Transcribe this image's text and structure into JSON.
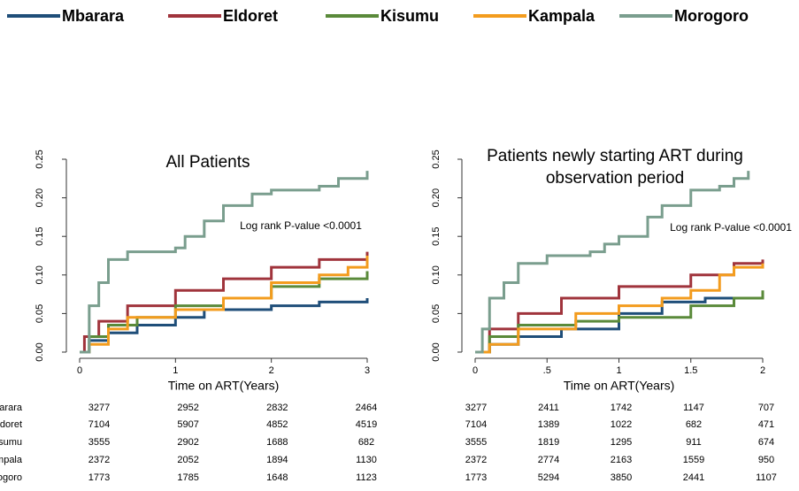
{
  "chart_data": [
    {
      "type": "step",
      "title": "All Patients",
      "annotation": "Log rank P-value <0.0001",
      "x_label": "Time on ART(Years)",
      "xlim": [
        0,
        3
      ],
      "xticks": [
        0,
        1,
        2,
        3
      ],
      "ylim": [
        0,
        0.25
      ],
      "yticks": [
        {
          "value": 0,
          "label": "0.00"
        },
        {
          "value": 0.05,
          "label": "0.05"
        },
        {
          "value": 0.1,
          "label": "0.10"
        },
        {
          "value": 0.15,
          "label": "0.15"
        },
        {
          "value": 0.2,
          "label": "0.20"
        },
        {
          "value": 0.25,
          "label": "0.25"
        }
      ],
      "series": [
        {
          "name": "Mbarara",
          "color": "#1f4e79",
          "x": [
            0,
            0.1,
            0.3,
            0.6,
            1,
            1.3,
            2,
            2.5,
            3
          ],
          "values": [
            0,
            0.015,
            0.025,
            0.035,
            0.045,
            0.055,
            0.06,
            0.065,
            0.07
          ],
          "at_risk": [
            3277,
            2952,
            2832,
            2464
          ]
        },
        {
          "name": "Eldoret",
          "color": "#a0343c",
          "x": [
            0,
            0.05,
            0.2,
            0.5,
            1,
            1.5,
            2,
            2.5,
            3
          ],
          "values": [
            0,
            0.02,
            0.04,
            0.06,
            0.08,
            0.095,
            0.11,
            0.12,
            0.13
          ],
          "at_risk": [
            7104,
            5907,
            4852,
            4519
          ]
        },
        {
          "name": "Kisumu",
          "color": "#5a8a3a",
          "x": [
            0,
            0.1,
            0.3,
            0.6,
            1,
            1.5,
            2,
            2.5,
            3
          ],
          "values": [
            0,
            0.02,
            0.035,
            0.045,
            0.06,
            0.07,
            0.085,
            0.095,
            0.105
          ],
          "at_risk": [
            3555,
            2902,
            1688,
            682
          ]
        },
        {
          "name": "Kampala",
          "color": "#f39c1e",
          "x": [
            0,
            0.1,
            0.3,
            0.5,
            1,
            1.5,
            2,
            2.5,
            2.8,
            3
          ],
          "values": [
            0,
            0.01,
            0.03,
            0.045,
            0.055,
            0.07,
            0.09,
            0.1,
            0.11,
            0.125
          ],
          "at_risk": [
            2372,
            2052,
            1894,
            1130
          ]
        },
        {
          "name": "Morogoro",
          "color": "#7a9e8e",
          "x": [
            0,
            0.1,
            0.2,
            0.3,
            0.5,
            1,
            1.1,
            1.3,
            1.5,
            1.8,
            2,
            2.5,
            2.7,
            3
          ],
          "values": [
            0,
            0.06,
            0.09,
            0.12,
            0.13,
            0.135,
            0.15,
            0.17,
            0.19,
            0.205,
            0.21,
            0.215,
            0.225,
            0.235
          ],
          "at_risk": [
            1773,
            1785,
            1648,
            1123
          ]
        }
      ]
    },
    {
      "type": "step",
      "title": [
        "Patients newly starting ART during",
        "observation period"
      ],
      "annotation": "Log rank P-value <0.0001",
      "x_label": "Time on ART(Years)",
      "xlim": [
        0,
        2
      ],
      "xticks": [
        0,
        {
          "value": 0.5,
          "label": ".5"
        },
        1,
        1.5,
        2
      ],
      "ylim": [
        0,
        0.25
      ],
      "yticks": [
        {
          "value": 0,
          "label": "0.00"
        },
        {
          "value": 0.05,
          "label": "0.05"
        },
        {
          "value": 0.1,
          "label": "0.10"
        },
        {
          "value": 0.15,
          "label": "0.15"
        },
        {
          "value": 0.2,
          "label": "0.20"
        },
        {
          "value": 0.25,
          "label": "0.25"
        }
      ],
      "series": [
        {
          "color": "#1f4e79",
          "x": [
            0,
            0.1,
            0.3,
            0.6,
            1,
            1.3,
            1.6,
            2
          ],
          "values": [
            0,
            0.01,
            0.02,
            0.03,
            0.05,
            0.065,
            0.07,
            0.075
          ],
          "at_risk": [
            3277,
            2411,
            1742,
            1147,
            707
          ]
        },
        {
          "color": "#a0343c",
          "x": [
            0,
            0.1,
            0.3,
            0.6,
            1,
            1.5,
            1.8,
            2
          ],
          "values": [
            0,
            0.03,
            0.05,
            0.07,
            0.085,
            0.1,
            0.115,
            0.12
          ],
          "at_risk": [
            7104,
            1389,
            1022,
            682,
            471
          ]
        },
        {
          "color": "#5a8a3a",
          "x": [
            0,
            0.1,
            0.3,
            0.7,
            1,
            1.5,
            1.8,
            2
          ],
          "values": [
            0,
            0.02,
            0.035,
            0.04,
            0.045,
            0.06,
            0.07,
            0.08
          ],
          "at_risk": [
            3555,
            1819,
            1295,
            911,
            674
          ]
        },
        {
          "color": "#f39c1e",
          "x": [
            0,
            0.1,
            0.3,
            0.7,
            1,
            1.3,
            1.5,
            1.7,
            1.8,
            2
          ],
          "values": [
            0,
            0.01,
            0.03,
            0.05,
            0.06,
            0.07,
            0.08,
            0.1,
            0.11,
            0.115
          ],
          "at_risk": [
            2372,
            2774,
            2163,
            1559,
            950
          ]
        },
        {
          "color": "#7a9e8e",
          "x": [
            0,
            0.05,
            0.1,
            0.2,
            0.3,
            0.5,
            0.8,
            0.9,
            1,
            1.2,
            1.3,
            1.5,
            1.7,
            1.8,
            1.9
          ],
          "values": [
            0,
            0.03,
            0.07,
            0.09,
            0.115,
            0.125,
            0.13,
            0.14,
            0.15,
            0.175,
            0.19,
            0.21,
            0.215,
            0.225,
            0.235
          ],
          "at_risk": [
            1773,
            5294,
            3850,
            2441,
            1107
          ]
        }
      ]
    }
  ]
}
